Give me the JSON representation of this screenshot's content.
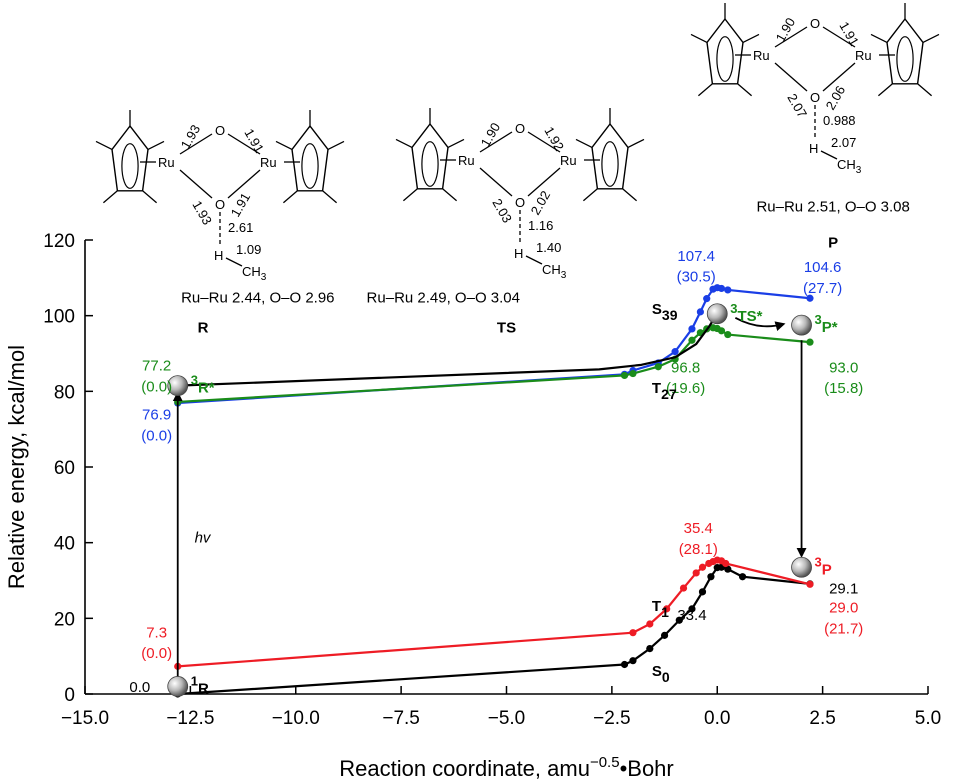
{
  "chart_data": {
    "type": "line",
    "xlabel": "Reaction coordinate, amu",
    "xlabel_sup": "−0.5",
    "xlabel_tail": "•Bohr",
    "ylabel": "Relative energy, kcal/mol",
    "xlim": [
      -15.0,
      5.0
    ],
    "ylim": [
      0,
      120
    ],
    "x_ticks": [
      -15.0,
      -12.5,
      -10.0,
      -7.5,
      -5.0,
      -2.5,
      0.0,
      2.5,
      5.0
    ],
    "x_tick_labels": [
      "−15.0",
      "−12.5",
      "−10.0",
      "−7.5",
      "−5.0",
      "−2.5",
      "0.0",
      "2.5",
      "5.0"
    ],
    "y_ticks": [
      0,
      20,
      40,
      60,
      80,
      100,
      120
    ],
    "y_tick_labels": [
      "0",
      "20",
      "40",
      "60",
      "80",
      "100",
      "120"
    ],
    "colors": {
      "S0": "#000000",
      "T1": "#ee1c25",
      "S39": "#1a3ee6",
      "T27": "#1a8c1a",
      "T_upper": "#000000"
    },
    "series": [
      {
        "key": "S0",
        "color": "#000000",
        "x": [
          -12.8,
          -2.2,
          -2.0,
          -1.6,
          -1.25,
          -0.9,
          -0.6,
          -0.35,
          -0.15,
          0.0,
          0.1,
          0.25,
          0.6,
          2.2
        ],
        "y": [
          0.0,
          7.8,
          8.8,
          12.0,
          15.5,
          19.5,
          22.5,
          27.0,
          31.0,
          33.4,
          33.5,
          33.0,
          31.0,
          29.1
        ]
      },
      {
        "key": "T1",
        "color": "#ee1c25",
        "x": [
          -12.8,
          -2.0,
          -1.6,
          -1.2,
          -0.8,
          -0.5,
          -0.35,
          -0.2,
          -0.1,
          0.0,
          0.1,
          0.2,
          2.2
        ],
        "y": [
          7.3,
          16.2,
          18.5,
          22.5,
          28.0,
          32.0,
          33.5,
          34.5,
          35.0,
          35.4,
          35.2,
          34.5,
          29.0
        ]
      },
      {
        "key": "S39",
        "color": "#1a3ee6",
        "x": [
          -12.8,
          -2.2,
          -2.0,
          -1.4,
          -1.0,
          -0.6,
          -0.4,
          -0.25,
          -0.1,
          0.0,
          0.1,
          0.25,
          2.2
        ],
        "y": [
          76.9,
          84.5,
          85.5,
          87.5,
          90.5,
          96.5,
          101.0,
          104.5,
          107.0,
          107.4,
          107.2,
          106.8,
          104.6
        ]
      },
      {
        "key": "T27",
        "color": "#1a8c1a",
        "x": [
          -12.8,
          -2.2,
          -2.0,
          -1.4,
          -1.0,
          -0.6,
          -0.4,
          -0.25,
          -0.1,
          0.0,
          0.1,
          0.25,
          2.2
        ],
        "y": [
          77.2,
          84.2,
          84.7,
          86.5,
          88.5,
          93.5,
          95.5,
          96.5,
          96.8,
          96.6,
          96.0,
          95.0,
          93.0
        ]
      },
      {
        "key": "T_upper",
        "color": "#000000",
        "markers": false,
        "x": [
          -12.8,
          -2.8,
          -1.8,
          -1.0,
          -0.5,
          -0.2,
          0.0
        ],
        "y": [
          81.5,
          85.8,
          87.0,
          89.0,
          92.5,
          97.0,
          100.5
        ]
      }
    ],
    "state_labels": [
      {
        "text": "S",
        "sub": "0",
        "x": -1.55,
        "y": 4.8,
        "color": "#000000"
      },
      {
        "text": "T",
        "sub": "1",
        "x": -1.55,
        "y": 22.0,
        "color": "#000000"
      },
      {
        "text": "S",
        "sub": "39",
        "x": -1.55,
        "y": 100.5,
        "color": "#000000"
      },
      {
        "text": "T",
        "sub": "27",
        "x": -1.55,
        "y": 79.5,
        "color": "#000000"
      }
    ],
    "points": [
      {
        "label": "R",
        "sup": "1",
        "x": -12.8,
        "y": 2.0,
        "color": "#000000"
      },
      {
        "label": "R*",
        "sup": "3",
        "x": -12.8,
        "y": 81.5,
        "color": "#1a8c1a"
      },
      {
        "label": "TS*",
        "sup": "3",
        "x": 0.0,
        "y": 100.5,
        "color": "#1a8c1a"
      },
      {
        "label": "P*",
        "sup": "3",
        "x": 2.0,
        "y": 97.5,
        "color": "#1a8c1a"
      },
      {
        "label": "P",
        "sup": "3",
        "x": 2.0,
        "y": 33.5,
        "color": "#ee1c25"
      }
    ],
    "annotations": [
      {
        "text": "77.2",
        "color": "#1a8c1a",
        "x": -13.3,
        "y": 85.5
      },
      {
        "text": "(0.0)",
        "color": "#1a8c1a",
        "x": -13.3,
        "y": 80.0
      },
      {
        "text": "76.9",
        "color": "#1a3ee6",
        "x": -13.3,
        "y": 72.5
      },
      {
        "text": "(0.0)",
        "color": "#1a3ee6",
        "x": -13.3,
        "y": 67.0
      },
      {
        "text": "7.3",
        "color": "#ee1c25",
        "x": -13.3,
        "y": 15.0
      },
      {
        "text": "(0.0)",
        "color": "#ee1c25",
        "x": -13.3,
        "y": 9.5
      },
      {
        "text": "0.0",
        "color": "#000000",
        "x": -13.7,
        "y": 0.5
      },
      {
        "text": "107.4",
        "color": "#1a3ee6",
        "x": -0.5,
        "y": 114.5
      },
      {
        "text": "(30.5)",
        "color": "#1a3ee6",
        "x": -0.5,
        "y": 109.0
      },
      {
        "text": "104.6",
        "color": "#1a3ee6",
        "x": 2.5,
        "y": 111.5
      },
      {
        "text": "(27.7)",
        "color": "#1a3ee6",
        "x": 2.5,
        "y": 106.0
      },
      {
        "text": "96.8",
        "color": "#1a8c1a",
        "x": -0.75,
        "y": 85.0
      },
      {
        "text": "(19.6)",
        "color": "#1a8c1a",
        "x": -0.75,
        "y": 79.5
      },
      {
        "text": "93.0",
        "color": "#1a8c1a",
        "x": 3.0,
        "y": 85.0
      },
      {
        "text": "(15.8)",
        "color": "#1a8c1a",
        "x": 3.0,
        "y": 79.5
      },
      {
        "text": "35.4",
        "color": "#ee1c25",
        "x": -0.45,
        "y": 42.5
      },
      {
        "text": "(28.1)",
        "color": "#ee1c25",
        "x": -0.45,
        "y": 37.0
      },
      {
        "text": "33.4",
        "color": "#000000",
        "x": -0.6,
        "y": 19.5
      },
      {
        "text": "29.1",
        "color": "#000000",
        "x": 3.0,
        "y": 26.5
      },
      {
        "text": "29.0",
        "color": "#ee1c25",
        "x": 3.0,
        "y": 21.5
      },
      {
        "text": "(21.7)",
        "color": "#ee1c25",
        "x": 3.0,
        "y": 16.0
      }
    ],
    "hv_label": "hv",
    "column_labels": [
      {
        "text": "R",
        "x": -12.2,
        "y": 95.5
      },
      {
        "text": "TS",
        "x": -5.0,
        "y": 95.5
      },
      {
        "text": "P",
        "x": 2.75,
        "y": 118.0
      }
    ],
    "geometry_captions": [
      {
        "text": "Ru–Ru 2.44, O–O 2.96",
        "x": -10.9,
        "y": 103.5
      },
      {
        "text": "Ru–Ru 2.49, O–O 3.04",
        "x": -6.5,
        "y": 103.5
      },
      {
        "text": "Ru–Ru 2.51, O–O 3.08",
        "x": 2.75,
        "y": 127.5
      }
    ],
    "structures": [
      {
        "id": "R",
        "ru_left": "Ru",
        "ru_right": "Ru",
        "O_top": "O",
        "O_bottom": "O",
        "H": "H",
        "CH": "CH",
        "sub3": "3",
        "bonds": {
          "ul": "1.93",
          "ur": "1.91",
          "ll": "1.93",
          "lr": "1.91",
          "oh": "2.61",
          "hc": "1.09"
        }
      },
      {
        "id": "TS",
        "ru_left": "Ru",
        "ru_right": "Ru",
        "O_top": "O",
        "O_bottom": "O",
        "H": "H",
        "CH": "CH",
        "sub3": "3",
        "bonds": {
          "ul": "1.90",
          "ur": "1.92",
          "ll": "2.03",
          "lr": "2.02",
          "oh": "1.16",
          "hc": "1.40"
        }
      },
      {
        "id": "P",
        "ru_left": "Ru",
        "ru_right": "Ru",
        "O_top": "O",
        "O_bottom": "O",
        "H": "H",
        "CH": "CH",
        "sub3": "3",
        "bonds": {
          "ul": "1.90",
          "ur": "1.91",
          "ll": "2.07",
          "lr": "2.06",
          "oh": "0.988",
          "hc": "2.07"
        }
      }
    ]
  }
}
